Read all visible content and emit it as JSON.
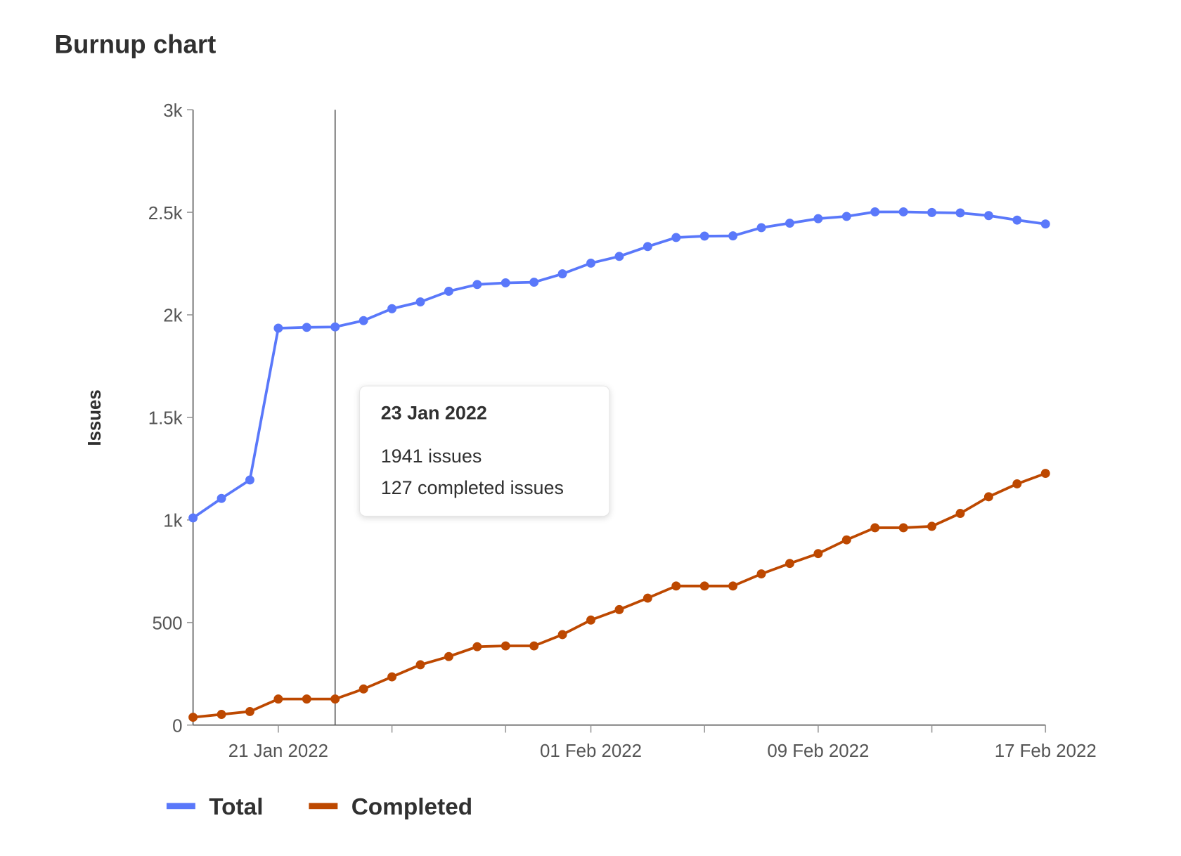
{
  "title": "Burnup chart",
  "colors": {
    "total": "#5a78fa",
    "completed": "#bd4800",
    "axis": "#555555"
  },
  "tooltip": {
    "date": "23 Jan 2022",
    "lines": [
      "1941 issues",
      "127 completed issues"
    ],
    "index": 5
  },
  "chart_data": {
    "type": "line",
    "title": "Burnup chart",
    "ylabel": "Issues",
    "xlabel": "",
    "ylim": [
      0,
      3000
    ],
    "yticks": [
      0,
      500,
      1000,
      1500,
      2000,
      2500,
      3000
    ],
    "ytick_labels": [
      "0",
      "500",
      "1k",
      "1.5k",
      "2k",
      "2.5k",
      "3k"
    ],
    "x_start": "2022-01-18",
    "x_end": "2022-02-17",
    "xtick_labels": [
      {
        "index": 3,
        "label": "21 Jan 2022"
      },
      {
        "index": 14,
        "label": "01 Feb 2022"
      },
      {
        "index": 22,
        "label": "09 Feb 2022"
      },
      {
        "index": 30,
        "label": "17 Feb 2022"
      }
    ],
    "minor_xtick_indices": [
      7,
      11,
      18,
      26
    ],
    "legend_position": "bottom-left",
    "grid": false,
    "series": [
      {
        "name": "Total",
        "values": [
          1010,
          1105,
          1195,
          1935,
          1939,
          1941,
          1972,
          2030,
          2063,
          2115,
          2148,
          2156,
          2159,
          2200,
          2252,
          2285,
          2333,
          2377,
          2384,
          2385,
          2425,
          2447,
          2469,
          2480,
          2502,
          2502,
          2499,
          2497,
          2484,
          2462,
          2443
        ]
      },
      {
        "name": "Completed",
        "values": [
          38,
          52,
          66,
          127,
          127,
          127,
          176,
          235,
          294,
          334,
          382,
          386,
          386,
          441,
          512,
          563,
          619,
          678,
          678,
          678,
          737,
          788,
          836,
          903,
          962,
          962,
          969,
          1032,
          1113,
          1176,
          1227
        ]
      }
    ]
  }
}
